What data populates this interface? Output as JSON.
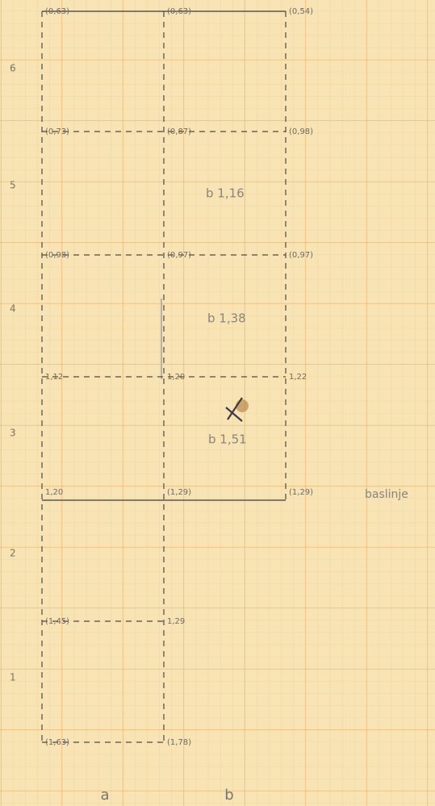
{
  "y_labels": [
    "6",
    "5",
    "4",
    "3",
    "2",
    "1"
  ],
  "x_labels": [
    "a",
    "b"
  ],
  "rows": [
    {
      "points": [
        "(0,63)",
        "(0,63)",
        "(0,54)"
      ]
    },
    {
      "points": [
        "(0,73)",
        "(0,87)",
        "(0,98)"
      ]
    },
    {
      "points": [
        "(0,98)",
        "(0,97)",
        "(0,97)"
      ]
    },
    {
      "points": [
        "1,12",
        "1,20",
        "1,22"
      ]
    },
    {
      "points": [
        "1,20",
        "(1,29)",
        "(1,29)"
      ]
    },
    {
      "points": [
        "(1,45)",
        "1,29"
      ]
    },
    {
      "points": [
        "(1,63)",
        "(1,78)"
      ]
    }
  ],
  "section_labels": [
    "b 1,16",
    "b 1,38",
    "b 1,51"
  ],
  "baseline_label": "baslinje"
}
